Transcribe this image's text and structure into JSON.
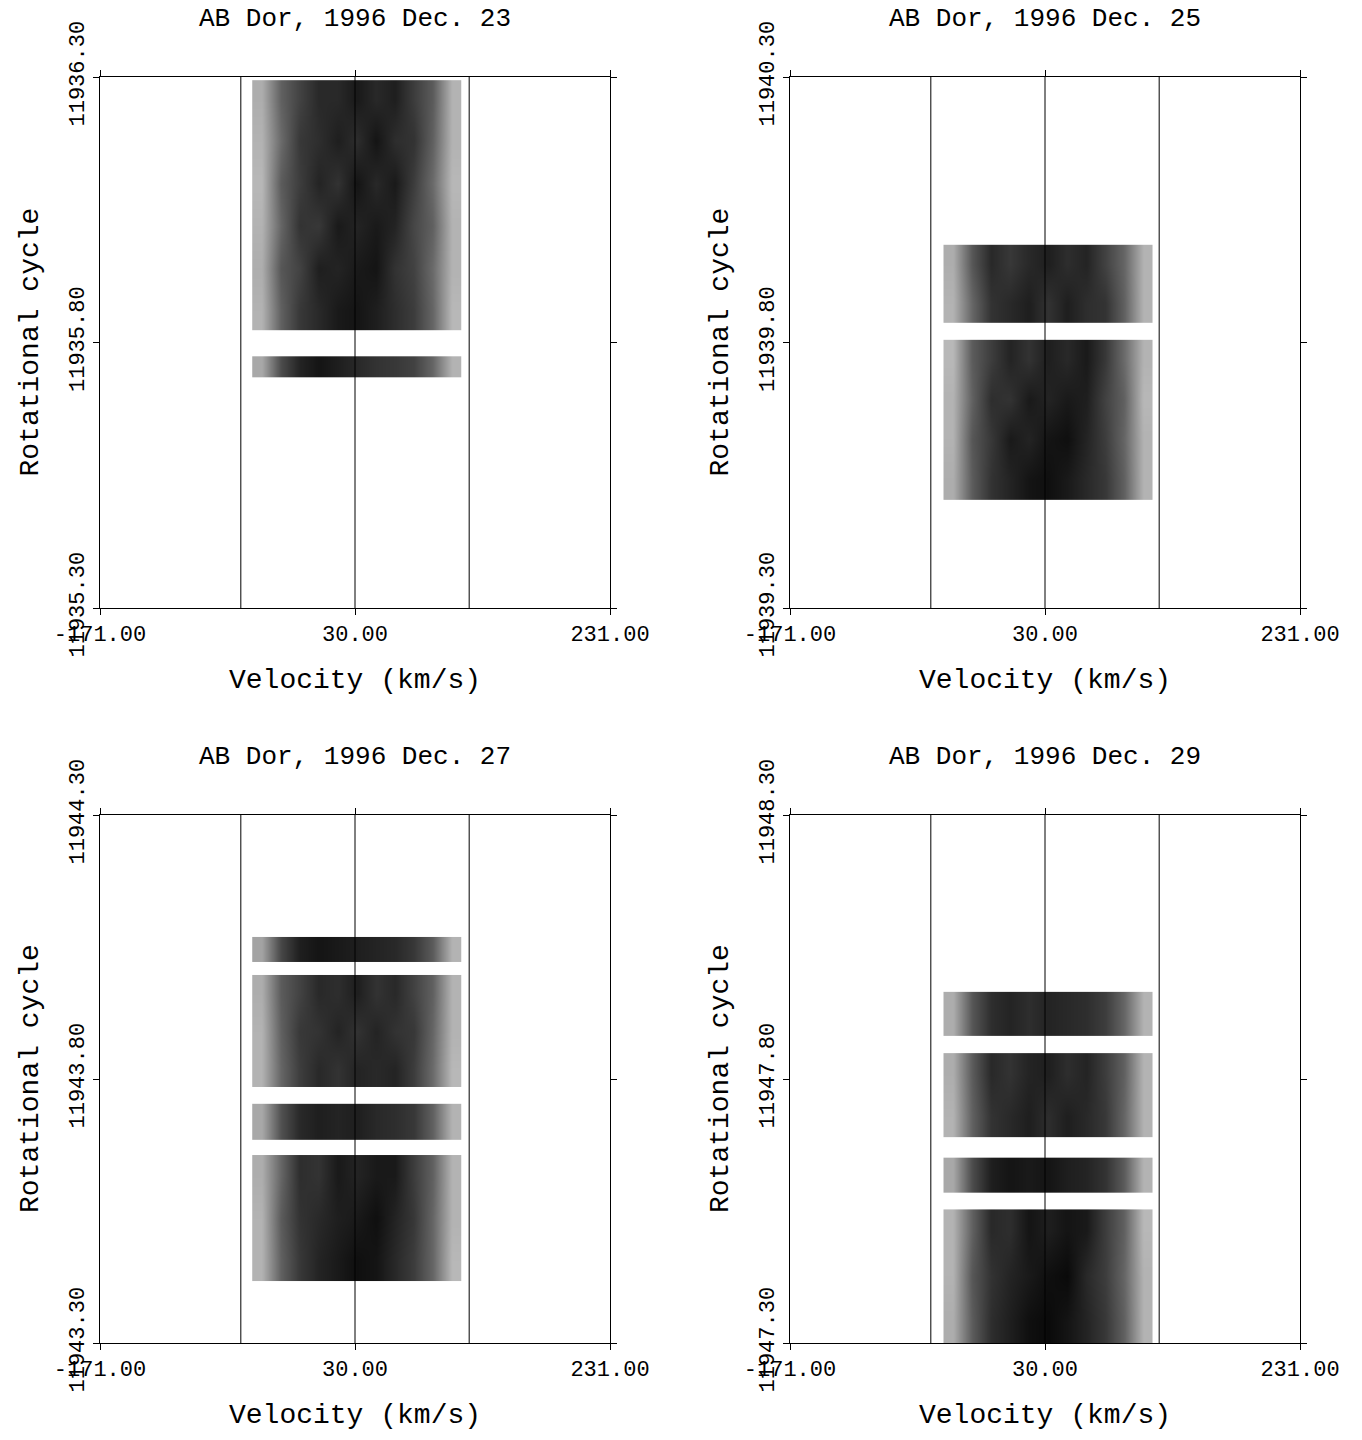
{
  "chart_data": [
    {
      "type": "heatmap",
      "title": "AB Dor, 1996 Dec. 23",
      "x_label": "Velocity (km/s)",
      "y_label": "Rotational cycle",
      "xlim": [
        -171,
        231
      ],
      "xticks": [
        {
          "value": -171,
          "label": "-171.00"
        },
        {
          "value": 30,
          "label": "30.00"
        },
        {
          "value": 231,
          "label": "231.00"
        }
      ],
      "ylim": [
        11935.3,
        11936.3
      ],
      "yticks": [
        {
          "value": 11935.3,
          "label": "11935.30"
        },
        {
          "value": 11935.8,
          "label": "11935.80"
        },
        {
          "value": 11936.3,
          "label": "11936.30"
        }
      ],
      "vlines": [
        -60,
        30,
        120
      ],
      "zlim": [
        0,
        1
      ],
      "x_edges": [
        -51,
        -36,
        -21,
        -6,
        9,
        24,
        39,
        54,
        69,
        84,
        99,
        114
      ],
      "blocks": [
        {
          "y_edges": [
            11935.734,
            11935.774
          ],
          "z": [
            [
              0.34,
              0.7,
              0.86,
              0.92,
              0.88,
              0.84,
              0.8,
              0.78,
              0.74,
              0.6,
              0.3
            ]
          ]
        },
        {
          "y_edges": [
            11935.824,
            11935.9,
            11935.98,
            11936.06,
            11936.14,
            11936.22,
            11936.294
          ],
          "z": [
            [
              0.3,
              0.62,
              0.78,
              0.84,
              0.9,
              0.92,
              0.88,
              0.82,
              0.76,
              0.6,
              0.28
            ],
            [
              0.32,
              0.66,
              0.74,
              0.88,
              0.86,
              0.9,
              0.92,
              0.8,
              0.74,
              0.58,
              0.3
            ],
            [
              0.3,
              0.6,
              0.8,
              0.78,
              0.9,
              0.86,
              0.9,
              0.86,
              0.72,
              0.62,
              0.3
            ],
            [
              0.28,
              0.64,
              0.76,
              0.86,
              0.8,
              0.92,
              0.84,
              0.9,
              0.76,
              0.58,
              0.28
            ],
            [
              0.3,
              0.58,
              0.78,
              0.82,
              0.88,
              0.82,
              0.92,
              0.82,
              0.8,
              0.62,
              0.3
            ],
            [
              0.32,
              0.62,
              0.74,
              0.84,
              0.84,
              0.9,
              0.84,
              0.88,
              0.76,
              0.64,
              0.3
            ]
          ]
        }
      ]
    },
    {
      "type": "heatmap",
      "title": "AB Dor, 1996 Dec. 25",
      "x_label": "Velocity (km/s)",
      "y_label": "Rotational cycle",
      "xlim": [
        -171,
        231
      ],
      "xticks": [
        {
          "value": -171,
          "label": "-171.00"
        },
        {
          "value": 30,
          "label": "30.00"
        },
        {
          "value": 231,
          "label": "231.00"
        }
      ],
      "ylim": [
        11939.3,
        11940.3
      ],
      "yticks": [
        {
          "value": 11939.3,
          "label": "11939.30"
        },
        {
          "value": 11939.8,
          "label": "11939.80"
        },
        {
          "value": 11940.3,
          "label": "11940.30"
        }
      ],
      "vlines": [
        -60,
        30,
        120
      ],
      "zlim": [
        0,
        1
      ],
      "x_edges": [
        -50,
        -35,
        -20,
        -5,
        10,
        25,
        40,
        55,
        70,
        85,
        100,
        115
      ],
      "blocks": [
        {
          "y_edges": [
            11939.504,
            11939.58,
            11939.655,
            11939.73,
            11939.805
          ],
          "z": [
            [
              0.32,
              0.64,
              0.8,
              0.86,
              0.92,
              0.94,
              0.9,
              0.84,
              0.78,
              0.62,
              0.3
            ],
            [
              0.3,
              0.66,
              0.78,
              0.9,
              0.86,
              0.92,
              0.94,
              0.86,
              0.76,
              0.6,
              0.3
            ],
            [
              0.3,
              0.62,
              0.82,
              0.8,
              0.9,
              0.86,
              0.9,
              0.88,
              0.74,
              0.62,
              0.28
            ],
            [
              0.28,
              0.64,
              0.76,
              0.86,
              0.8,
              0.88,
              0.84,
              0.9,
              0.78,
              0.58,
              0.3
            ]
          ]
        },
        {
          "y_edges": [
            11939.837,
            11939.91,
            11939.984
          ],
          "z": [
            [
              0.3,
              0.6,
              0.8,
              0.84,
              0.88,
              0.8,
              0.88,
              0.82,
              0.8,
              0.62,
              0.3
            ],
            [
              0.32,
              0.66,
              0.84,
              0.78,
              0.84,
              0.88,
              0.82,
              0.86,
              0.74,
              0.6,
              0.3
            ]
          ]
        }
      ]
    },
    {
      "type": "heatmap",
      "title": "AB Dor, 1996 Dec. 27",
      "x_label": "Velocity (km/s)",
      "y_label": "Rotational cycle",
      "xlim": [
        -171,
        231
      ],
      "xticks": [
        {
          "value": -171,
          "label": "-171.00"
        },
        {
          "value": 30,
          "label": "30.00"
        },
        {
          "value": 231,
          "label": "231.00"
        }
      ],
      "ylim": [
        11943.3,
        11944.3
      ],
      "yticks": [
        {
          "value": 11943.3,
          "label": "11943.30"
        },
        {
          "value": 11943.8,
          "label": "11943.80"
        },
        {
          "value": 11944.3,
          "label": "11944.30"
        }
      ],
      "vlines": [
        -60,
        30,
        120
      ],
      "zlim": [
        0,
        1
      ],
      "x_edges": [
        -51,
        -36,
        -21,
        -6,
        9,
        24,
        39,
        54,
        69,
        84,
        99,
        114
      ],
      "blocks": [
        {
          "y_edges": [
            11943.417,
            11943.497,
            11943.577,
            11943.656
          ],
          "z": [
            [
              0.3,
              0.62,
              0.78,
              0.86,
              0.9,
              0.94,
              0.92,
              0.84,
              0.76,
              0.6,
              0.28
            ],
            [
              0.3,
              0.64,
              0.8,
              0.84,
              0.88,
              0.9,
              0.94,
              0.86,
              0.78,
              0.6,
              0.3
            ],
            [
              0.32,
              0.6,
              0.82,
              0.8,
              0.9,
              0.86,
              0.9,
              0.9,
              0.76,
              0.62,
              0.3
            ]
          ]
        },
        {
          "y_edges": [
            11943.685,
            11943.753
          ],
          "z": [
            [
              0.34,
              0.68,
              0.84,
              0.88,
              0.86,
              0.88,
              0.84,
              0.82,
              0.78,
              0.62,
              0.3
            ]
          ]
        },
        {
          "y_edges": [
            11943.785,
            11943.855,
            11943.925,
            11943.997
          ],
          "z": [
            [
              0.3,
              0.6,
              0.76,
              0.84,
              0.8,
              0.86,
              0.84,
              0.86,
              0.76,
              0.58,
              0.28
            ],
            [
              0.3,
              0.62,
              0.78,
              0.8,
              0.86,
              0.8,
              0.86,
              0.8,
              0.78,
              0.6,
              0.3
            ],
            [
              0.32,
              0.64,
              0.74,
              0.84,
              0.82,
              0.88,
              0.8,
              0.84,
              0.74,
              0.62,
              0.3
            ]
          ]
        },
        {
          "y_edges": [
            11944.021,
            11944.069
          ],
          "z": [
            [
              0.36,
              0.72,
              0.88,
              0.92,
              0.9,
              0.88,
              0.86,
              0.84,
              0.78,
              0.64,
              0.3
            ]
          ]
        }
      ]
    },
    {
      "type": "heatmap",
      "title": "AB Dor, 1996 Dec. 29",
      "x_label": "Velocity (km/s)",
      "y_label": "Rotational cycle",
      "xlim": [
        -171,
        231
      ],
      "xticks": [
        {
          "value": -171,
          "label": "-171.00"
        },
        {
          "value": 30,
          "label": "30.00"
        },
        {
          "value": 231,
          "label": "231.00"
        }
      ],
      "ylim": [
        11947.3,
        11948.3
      ],
      "yticks": [
        {
          "value": 11947.3,
          "label": "11947.30"
        },
        {
          "value": 11947.8,
          "label": "11947.80"
        },
        {
          "value": 11948.3,
          "label": "11948.30"
        }
      ],
      "vlines": [
        -60,
        30,
        120
      ],
      "zlim": [
        0,
        1
      ],
      "x_edges": [
        -50,
        -35,
        -20,
        -5,
        10,
        25,
        40,
        55,
        70,
        85,
        100,
        115
      ],
      "blocks": [
        {
          "y_edges": [
            11947.3,
            11947.385,
            11947.47,
            11947.553
          ],
          "z": [
            [
              0.32,
              0.64,
              0.82,
              0.88,
              0.94,
              0.96,
              0.92,
              0.86,
              0.78,
              0.62,
              0.3
            ],
            [
              0.3,
              0.66,
              0.8,
              0.86,
              0.9,
              0.94,
              0.96,
              0.84,
              0.76,
              0.6,
              0.3
            ],
            [
              0.3,
              0.62,
              0.84,
              0.82,
              0.92,
              0.88,
              0.92,
              0.9,
              0.76,
              0.62,
              0.28
            ]
          ]
        },
        {
          "y_edges": [
            11947.585,
            11947.651
          ],
          "z": [
            [
              0.34,
              0.7,
              0.88,
              0.92,
              0.9,
              0.92,
              0.88,
              0.86,
              0.8,
              0.64,
              0.3
            ]
          ]
        },
        {
          "y_edges": [
            11947.689,
            11947.769,
            11947.849
          ],
          "z": [
            [
              0.3,
              0.62,
              0.8,
              0.84,
              0.88,
              0.82,
              0.88,
              0.84,
              0.78,
              0.6,
              0.3
            ],
            [
              0.32,
              0.64,
              0.84,
              0.8,
              0.86,
              0.88,
              0.82,
              0.86,
              0.76,
              0.62,
              0.3
            ]
          ]
        },
        {
          "y_edges": [
            11947.882,
            11947.965
          ],
          "z": [
            [
              0.32,
              0.66,
              0.82,
              0.86,
              0.82,
              0.86,
              0.84,
              0.82,
              0.76,
              0.6,
              0.3
            ]
          ]
        }
      ]
    }
  ]
}
